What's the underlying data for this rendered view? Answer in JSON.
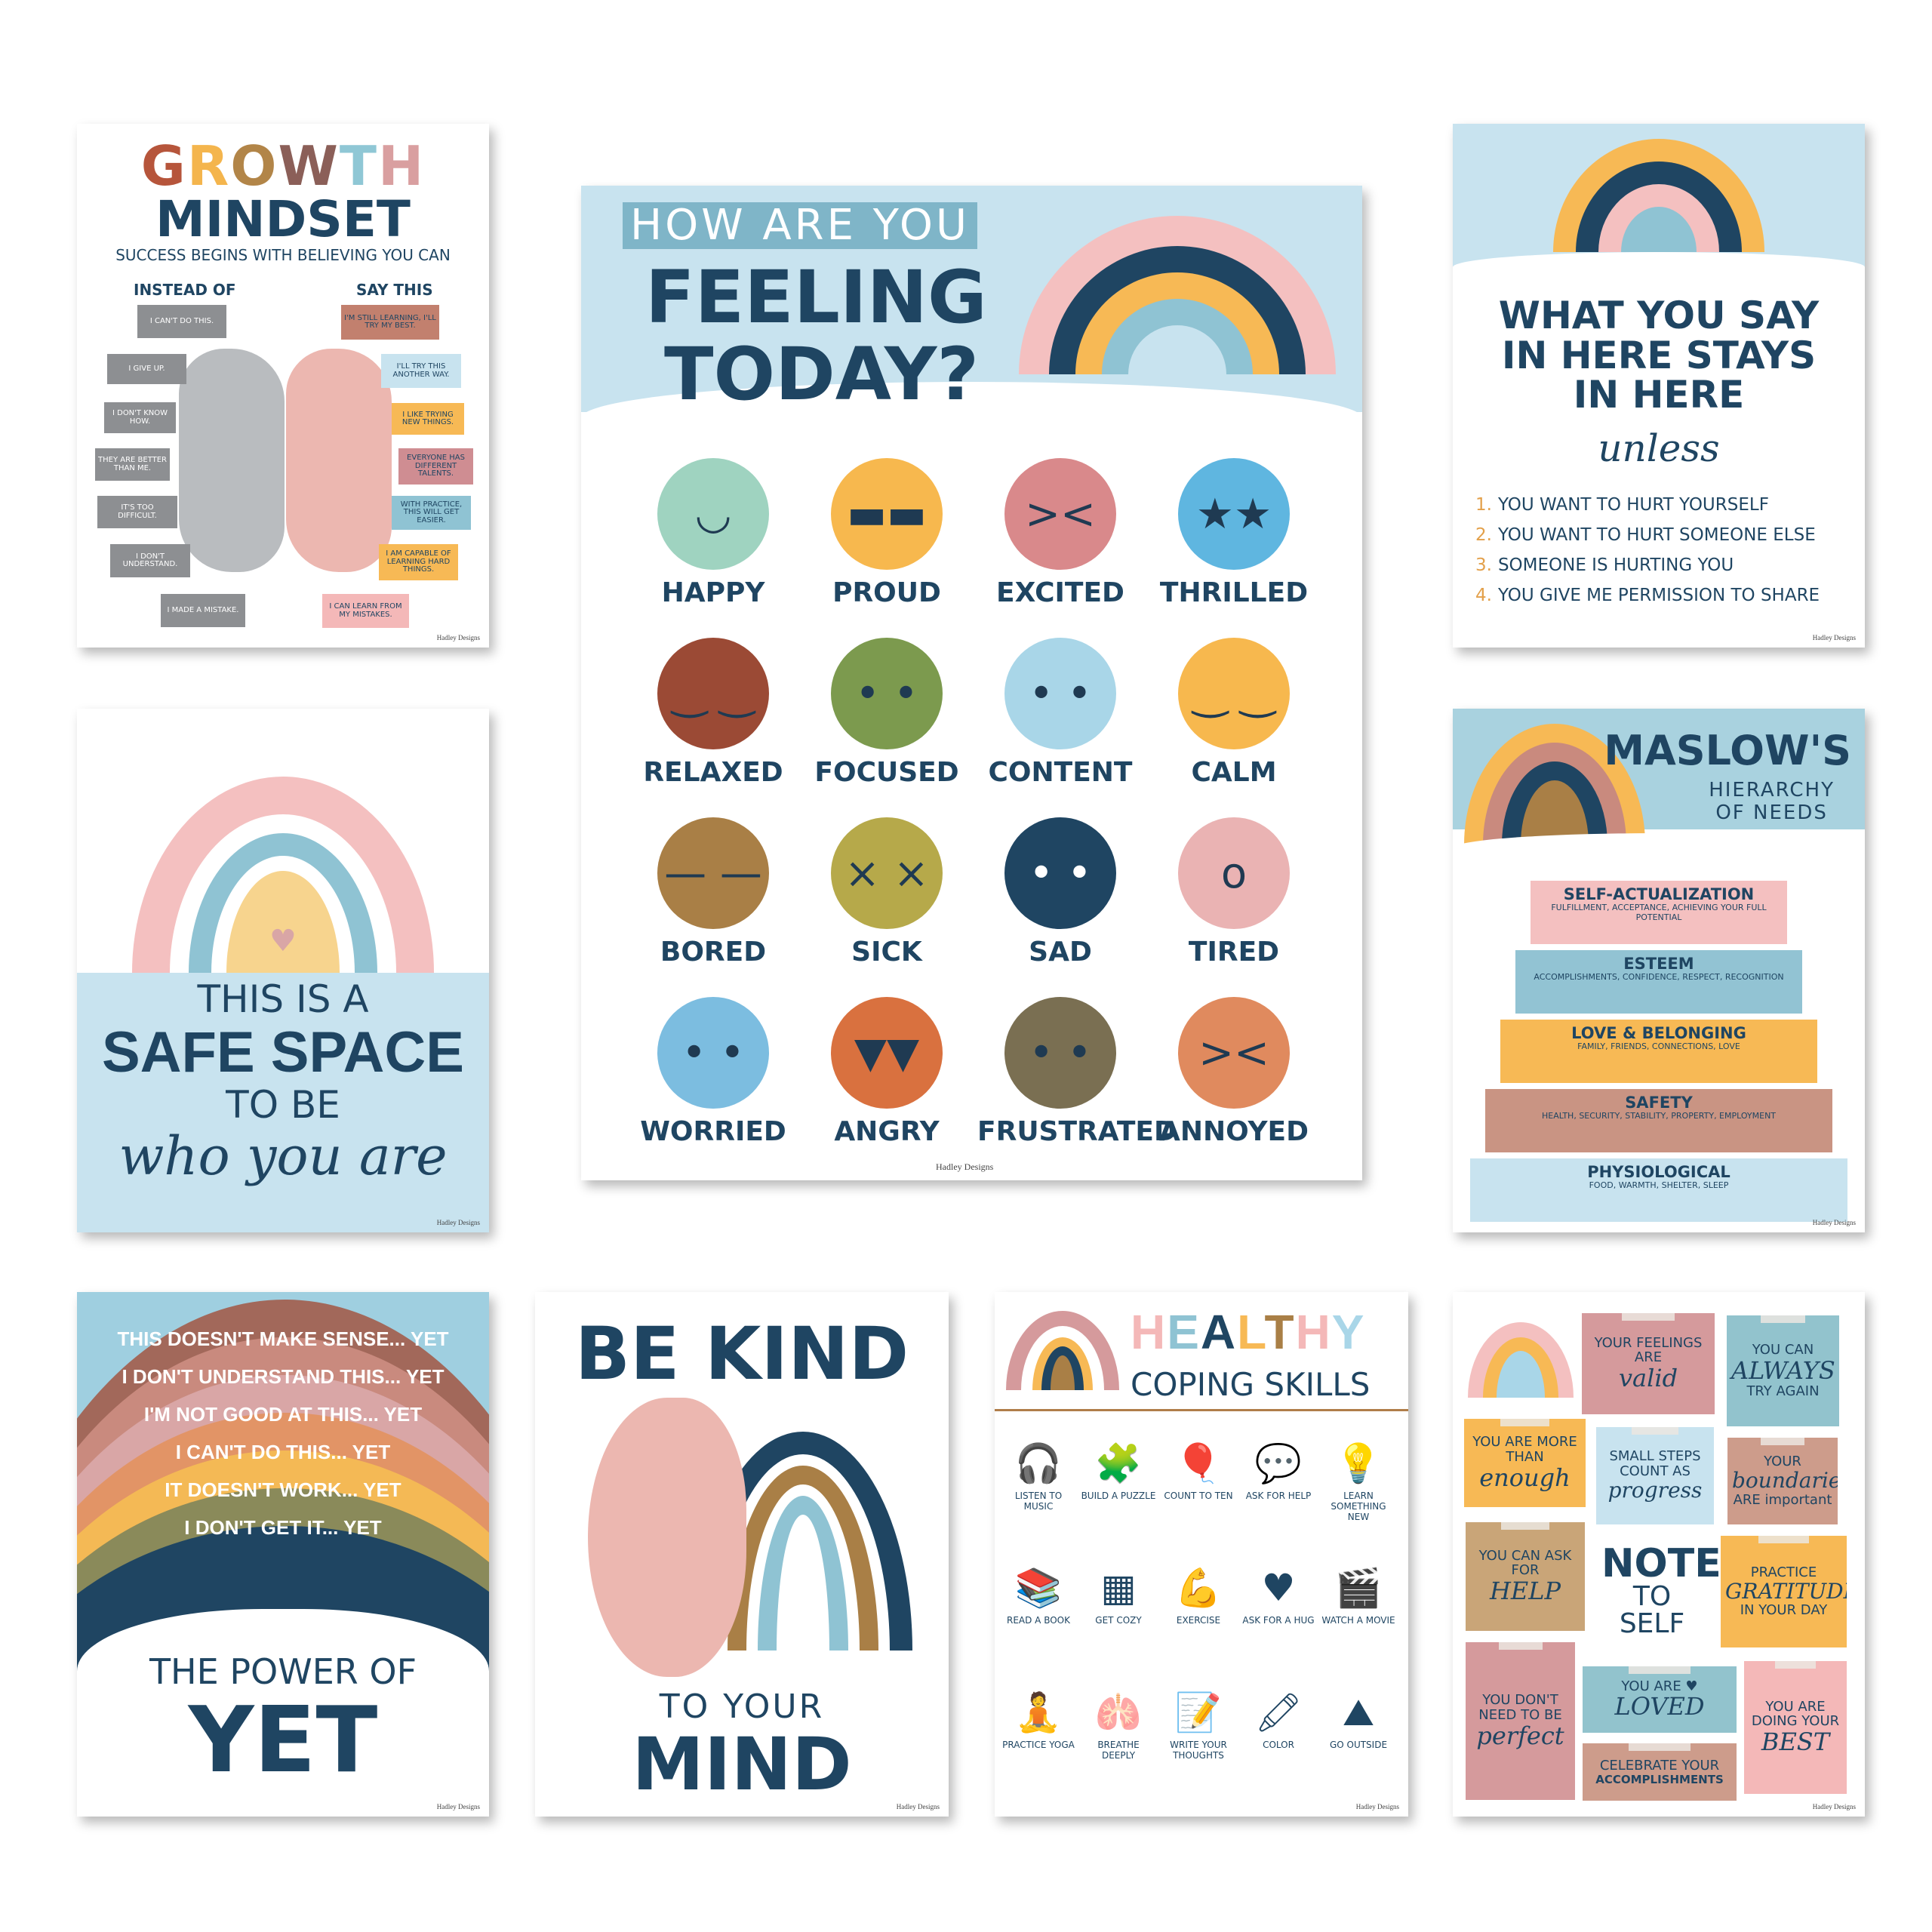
{
  "brand": "Hadley Designs",
  "growth": {
    "title_letters": [
      "G",
      "R",
      "O",
      "W",
      "T",
      "H"
    ],
    "title_colors": [
      "#b6553b",
      "#f4b54d",
      "#b28548",
      "#8b5f58",
      "#8fc7d5",
      "#d99fa0"
    ],
    "title2": "MINDSET",
    "subtitle": "SUCCESS BEGINS WITH BELIEVING YOU CAN",
    "left_heading": "INSTEAD OF",
    "right_heading": "SAY THIS",
    "instead_of": [
      "I CAN'T DO THIS.",
      "I GIVE UP.",
      "I DON'T KNOW HOW.",
      "THEY ARE BETTER THAN ME.",
      "IT'S TOO DIFFICULT.",
      "I DON'T UNDERSTAND.",
      "I MADE A MISTAKE."
    ],
    "say_this": [
      "I'M STILL LEARNING, I'LL TRY MY BEST.",
      "I'LL TRY THIS ANOTHER WAY.",
      "I LIKE TRYING NEW THINGS.",
      "EVERYONE HAS DIFFERENT TALENTS.",
      "WITH PRACTICE, THIS WILL GET EASIER.",
      "I AM CAPABLE OF LEARNING HARD THINGS.",
      "I CAN LEARN FROM MY MISTAKES."
    ],
    "say_colors": [
      "#c2806e",
      "#c8e3ef",
      "#f7b955",
      "#cf8d92",
      "#8fc3d3",
      "#f7b955",
      "#f4b8b8"
    ]
  },
  "feelings": {
    "line1": "HOW ARE YOU",
    "line2": "FEELING",
    "line3": "TODAY?",
    "emotions": [
      {
        "label": "HAPPY",
        "color": "#9fd3c0",
        "glyph": "◡"
      },
      {
        "label": "PROUD",
        "color": "#f7b84e",
        "glyph": "▬▬"
      },
      {
        "label": "EXCITED",
        "color": "#d9898b",
        "glyph": "><"
      },
      {
        "label": "THRILLED",
        "color": "#5fb6e0",
        "glyph": "★★"
      },
      {
        "label": "RELAXED",
        "color": "#9b4a35",
        "glyph": "‿ ‿"
      },
      {
        "label": "FOCUSED",
        "color": "#7c9a4e",
        "glyph": "• •"
      },
      {
        "label": "CONTENT",
        "color": "#a9d6e8",
        "glyph": "• •"
      },
      {
        "label": "CALM",
        "color": "#f7b84e",
        "glyph": "‿ ‿"
      },
      {
        "label": "BORED",
        "color": "#a97f46",
        "glyph": "— —"
      },
      {
        "label": "SICK",
        "color": "#b6a94a",
        "glyph": "× ×"
      },
      {
        "label": "SAD",
        "color": "#1f4562",
        "glyph": "• •"
      },
      {
        "label": "TIRED",
        "color": "#eab3b3",
        "glyph": "o"
      },
      {
        "label": "WORRIED",
        "color": "#7cbde0",
        "glyph": "• •"
      },
      {
        "label": "ANGRY",
        "color": "#d9713f",
        "glyph": "▼▼"
      },
      {
        "label": "FRUSTRATED",
        "color": "#7a6f52",
        "glyph": "• •"
      },
      {
        "label": "ANNOYED",
        "color": "#e08a5e",
        "glyph": "><"
      }
    ]
  },
  "say": {
    "title": [
      "WHAT YOU SAY",
      "IN HERE STAYS",
      "IN HERE"
    ],
    "unless": "unless",
    "items": [
      {
        "num": "1.",
        "text": "YOU WANT TO HURT YOURSELF"
      },
      {
        "num": "2.",
        "text": "YOU WANT TO HURT SOMEONE ELSE"
      },
      {
        "num": "3.",
        "text": "SOMEONE IS HURTING YOU"
      },
      {
        "num": "4.",
        "text": "YOU GIVE ME PERMISSION TO SHARE"
      }
    ]
  },
  "safe": {
    "l1": "THIS IS A",
    "l2": "SAFE SPACE",
    "l3": "TO BE",
    "l4": "who you are"
  },
  "maslow": {
    "title": "MASLOW'S",
    "subtitle": [
      "HIERARCHY",
      "OF NEEDS"
    ],
    "tiers": [
      {
        "name": "SELF-ACTUALIZATION",
        "desc": "FULFILLMENT, ACCEPTANCE, ACHIEVING YOUR FULL POTENTIAL",
        "color": "#f4c0c0"
      },
      {
        "name": "ESTEEM",
        "desc": "ACCOMPLISHMENTS, CONFIDENCE, RESPECT, RECOGNITION",
        "color": "#92c3d3"
      },
      {
        "name": "LOVE & BELONGING",
        "desc": "FAMILY, FRIENDS, CONNECTIONS, LOVE",
        "color": "#f7b955"
      },
      {
        "name": "SAFETY",
        "desc": "HEALTH, SECURITY, STABILITY, PROPERTY, EMPLOYMENT",
        "color": "#c99483"
      },
      {
        "name": "PHYSIOLOGICAL",
        "desc": "FOOD, WARMTH, SHELTER, SLEEP",
        "color": "#c8e3ef"
      }
    ]
  },
  "yet": {
    "lines": [
      "THIS DOESN'T MAKE SENSE... YET",
      "I DON'T UNDERSTAND THIS... YET",
      "I'M NOT GOOD AT THIS... YET",
      "I CAN'T DO THIS... YET",
      "IT DOESN'T WORK... YET",
      "I DON'T GET IT... YET"
    ],
    "band_colors": [
      "#a2685a",
      "#c98a7e",
      "#d9a6a6",
      "#e29466",
      "#f4b955",
      "#8a8a5a",
      "#1f4562"
    ],
    "footer1": "THE POWER OF",
    "footer2": "YET"
  },
  "kind": {
    "line1": "BE KIND",
    "line2": "TO YOUR",
    "line3": "MIND"
  },
  "healthy": {
    "title_letters": [
      "H",
      "E",
      "A",
      "L",
      "T",
      "H",
      "Y"
    ],
    "title_colors": [
      "#f4b8b8",
      "#8fc3d3",
      "#1f4562",
      "#f7b955",
      "#a97f46",
      "#f4b8b8",
      "#a9d6e8"
    ],
    "subtitle": "COPING SKILLS",
    "skills": [
      {
        "label": "LISTEN TO MUSIC",
        "icon": "🎧"
      },
      {
        "label": "BUILD A PUZZLE",
        "icon": "🧩"
      },
      {
        "label": "COUNT TO TEN",
        "icon": "🎈"
      },
      {
        "label": "ASK FOR HELP",
        "icon": "💬"
      },
      {
        "label": "LEARN SOMETHING NEW",
        "icon": "💡"
      },
      {
        "label": "READ A BOOK",
        "icon": "📚"
      },
      {
        "label": "GET COZY",
        "icon": "▦"
      },
      {
        "label": "EXERCISE",
        "icon": "💪"
      },
      {
        "label": "ASK FOR A HUG",
        "icon": "♥"
      },
      {
        "label": "WATCH A MOVIE",
        "icon": "🎬"
      },
      {
        "label": "PRACTICE YOGA",
        "icon": "🧘"
      },
      {
        "label": "BREATHE DEEPLY",
        "icon": "🫁"
      },
      {
        "label": "WRITE YOUR THOUGHTS",
        "icon": "📝"
      },
      {
        "label": "COLOR",
        "icon": "🖍"
      },
      {
        "label": "GO OUTSIDE",
        "icon": "⛰"
      }
    ]
  },
  "note": {
    "center": [
      "NOTE",
      "TO",
      "SELF"
    ],
    "notes": [
      {
        "small": "YOUR FEELINGS ARE",
        "big": "valid",
        "color": "#d59a9c"
      },
      {
        "small": "YOU CAN",
        "big": "ALWAYS",
        "small2": "TRY AGAIN",
        "color": "#92c3cd"
      },
      {
        "small": "YOU ARE MORE THAN",
        "big": "enough",
        "color": "#f7b955"
      },
      {
        "small": "SMALL STEPS COUNT AS",
        "big": "progress",
        "color": "#c8e3ef"
      },
      {
        "small": "YOUR",
        "big": "boundaries",
        "small2": "ARE important",
        "color": "#cd9c8b"
      },
      {
        "small": "YOU CAN ASK FOR",
        "big": "HELP",
        "color": "#c9a578"
      },
      {
        "small": "PRACTICE",
        "big": "GRATITUDE",
        "small2": "IN YOUR DAY",
        "color": "#f7b955"
      },
      {
        "small": "YOU DON'T NEED TO BE",
        "big": "perfect",
        "color": "#d59a9c"
      },
      {
        "small": "YOU ARE ♥",
        "big": "LOVED",
        "color": "#92c3cd"
      },
      {
        "small": "CELEBRATE YOUR",
        "big": "ACCOMPLISHMENTS",
        "color": "#cd9c8b"
      },
      {
        "small": "YOU ARE DOING YOUR",
        "big": "BEST",
        "color": "#f4b8b8"
      }
    ]
  }
}
